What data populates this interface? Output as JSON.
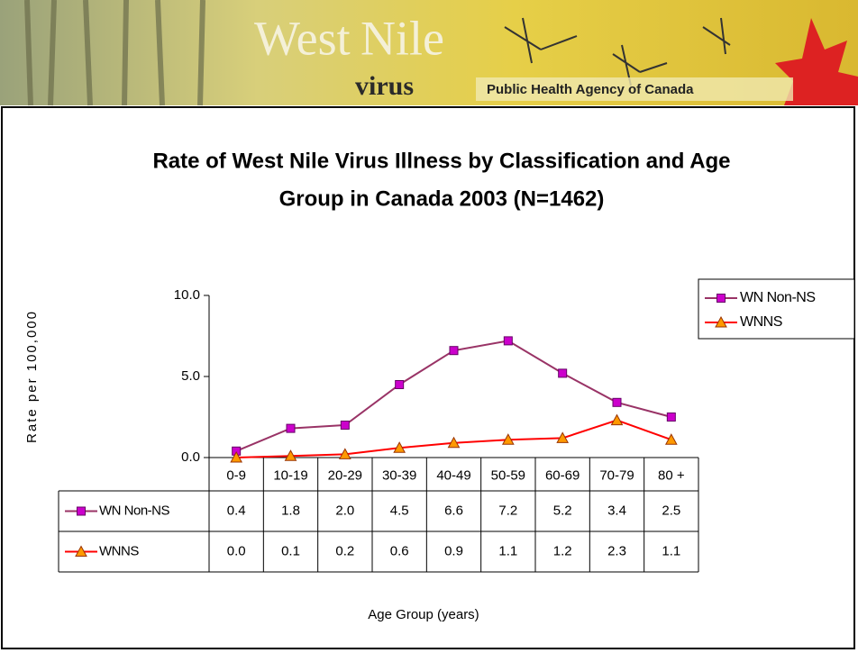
{
  "banner": {
    "title_west": "West",
    "title_nile": "Nile",
    "subtitle": "virus",
    "agency": "Public Health Agency of Canada"
  },
  "chart_data": {
    "type": "line",
    "title": [
      "Rate of West Nile Virus Illness by Classification and Age",
      "Group in Canada 2003 (N=1462)"
    ],
    "y_label": "Rate per 100,000",
    "x_label": "Age Group (years)",
    "categories": [
      "0-9",
      "10-19",
      "20-29",
      "30-39",
      "40-49",
      "50-59",
      "60-69",
      "70-79",
      "80 +"
    ],
    "ylim": [
      0,
      10
    ],
    "yticks": [
      {
        "value": 0,
        "label": "0.0"
      },
      {
        "value": 5,
        "label": "5.0"
      },
      {
        "value": 10,
        "label": "10.0"
      }
    ],
    "grid": false,
    "legend": "right",
    "series": [
      {
        "name": "WN Non-NS",
        "color": "#993366",
        "marker": "square",
        "marker_color": "#cc00cc",
        "values": [
          0.4,
          1.8,
          2.0,
          4.5,
          6.6,
          7.2,
          5.2,
          3.4,
          2.5
        ],
        "value_labels": [
          "0.4",
          "1.8",
          "2.0",
          "4.5",
          "6.6",
          "7.2",
          "5.2",
          "3.4",
          "2.5"
        ]
      },
      {
        "name": "WNNS",
        "color": "#ff0000",
        "marker": "triangle",
        "marker_color": "#ff9900",
        "values": [
          0.0,
          0.1,
          0.2,
          0.6,
          0.9,
          1.1,
          1.2,
          2.3,
          1.1
        ],
        "value_labels": [
          "0.0",
          "0.1",
          "0.2",
          "0.6",
          "0.9",
          "1.1",
          "1.2",
          "2.3",
          "1.1"
        ]
      }
    ]
  }
}
